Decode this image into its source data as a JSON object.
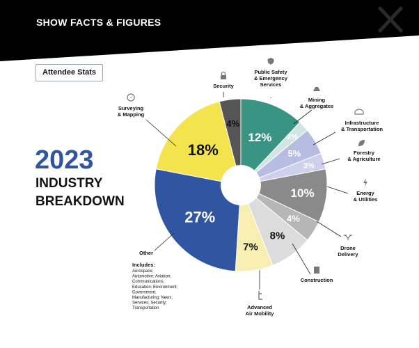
{
  "header": {
    "title": "SHOW FACTS & FIGURES"
  },
  "badge": "Attendee Stats",
  "heading": {
    "year": "2023",
    "line1": "INDUSTRY",
    "line2": "BREAKDOWN"
  },
  "colors": {
    "header_bg": "#000000",
    "year": "#3156a1"
  },
  "chart_data": {
    "type": "pie",
    "donut": true,
    "slices": [
      {
        "name": "Public Safety & Emergency Services",
        "label_lines": [
          "Public Safety",
          "& Emergency",
          "Services"
        ],
        "value": 12,
        "pct_label": "12%",
        "color": "#3a9483",
        "icon": "shield-icon"
      },
      {
        "name": "Mining & Aggregates",
        "label_lines": [
          "Mining",
          "& Aggregates"
        ],
        "value": 2,
        "pct_label": "2%",
        "color": "#cfe6e1",
        "icon": "mining-icon"
      },
      {
        "name": "Infrastructure & Transportation",
        "label_lines": [
          "Infrastructure",
          "& Transportation"
        ],
        "value": 5,
        "pct_label": "5%",
        "color": "#b7bde2",
        "icon": "bridge-icon"
      },
      {
        "name": "Forestry & Agriculture",
        "label_lines": [
          "Forestry",
          "& Agriculture"
        ],
        "value": 3,
        "pct_label": "3%",
        "color": "#cdd1ee",
        "icon": "leaf-icon"
      },
      {
        "name": "Energy & Utilities",
        "label_lines": [
          "Energy",
          "& Utilities"
        ],
        "value": 10,
        "pct_label": "10%",
        "color": "#8a8a8a",
        "icon": "lightning-icon"
      },
      {
        "name": "Drone Delivery",
        "label_lines": [
          "Drone",
          "Delivery"
        ],
        "value": 4,
        "pct_label": "4%",
        "color": "#b6b6b6",
        "icon": "drone-icon"
      },
      {
        "name": "Construction",
        "label_lines": [
          "Construction"
        ],
        "value": 8,
        "pct_label": "8%",
        "color": "#dcdcdc",
        "icon": "building-icon"
      },
      {
        "name": "Advanced Air Mobility",
        "label_lines": [
          "Advanced",
          "Air Mobility"
        ],
        "value": 7,
        "pct_label": "7%",
        "color": "#f7eeb1",
        "icon": "aircraft-icon"
      },
      {
        "name": "Other",
        "label_lines": [
          "Other"
        ],
        "value": 27,
        "pct_label": "27%",
        "color": "#3156a1",
        "icon": "",
        "details_title": "Includes:",
        "details_lines": [
          "Aerospace;",
          "Automotive; Aviation;",
          "Communications;",
          "Education; Environment;",
          "Government;",
          "Manufacturing; News;",
          "Services; Security;",
          "Transportation"
        ]
      },
      {
        "name": "Surveying & Mapping",
        "label_lines": [
          "Surveying",
          "& Mapping"
        ],
        "value": 18,
        "pct_label": "18%",
        "color": "#f3e34d",
        "icon": "compass-icon"
      },
      {
        "name": "Security",
        "label_lines": [
          "Security"
        ],
        "value": 4,
        "pct_label": "4%",
        "color": "#555555",
        "icon": "lock-icon"
      }
    ]
  }
}
